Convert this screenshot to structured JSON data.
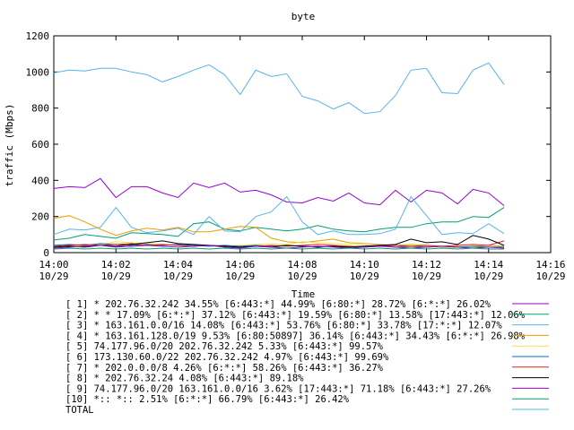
{
  "chart_data": {
    "type": "line",
    "title": "byte",
    "xlabel": "Time",
    "ylabel": "traffic (Mbps)",
    "ylim": [
      0,
      1200
    ],
    "yticks": [
      0,
      200,
      400,
      600,
      800,
      1000,
      1200
    ],
    "xlim": [
      "14:00",
      "14:16"
    ],
    "xticks": [
      {
        "time": "14:00",
        "date": "10/29"
      },
      {
        "time": "14:02",
        "date": "10/29"
      },
      {
        "time": "14:04",
        "date": "10/29"
      },
      {
        "time": "14:06",
        "date": "10/29"
      },
      {
        "time": "14:08",
        "date": "10/29"
      },
      {
        "time": "14:10",
        "date": "10/29"
      },
      {
        "time": "14:12",
        "date": "10/29"
      },
      {
        "time": "14:14",
        "date": "10/29"
      },
      {
        "time": "14:16",
        "date": "10/29"
      }
    ],
    "x": [
      "14:00:00",
      "14:00:30",
      "14:01:00",
      "14:01:30",
      "14:02:00",
      "14:02:30",
      "14:03:00",
      "14:03:30",
      "14:04:00",
      "14:04:30",
      "14:05:00",
      "14:05:30",
      "14:06:00",
      "14:06:30",
      "14:07:00",
      "14:07:30",
      "14:08:00",
      "14:08:30",
      "14:09:00",
      "14:09:30",
      "14:10:00",
      "14:10:30",
      "14:11:00",
      "14:11:30",
      "14:12:00",
      "14:12:30",
      "14:13:00",
      "14:13:30",
      "14:14:00",
      "14:14:30"
    ],
    "grid": false,
    "legend_position": "bottom",
    "series": [
      {
        "name": "[ 1] * 202.76.32.242 34.55%  [6:443:*] 44.99% [6:80:*] 28.72% [6:*:*] 26.02%",
        "color": "#9400d3",
        "values": [
          355,
          365,
          360,
          410,
          305,
          365,
          365,
          330,
          305,
          385,
          360,
          385,
          335,
          345,
          320,
          280,
          275,
          305,
          285,
          330,
          275,
          265,
          345,
          280,
          345,
          330,
          270,
          350,
          330,
          260
        ]
      },
      {
        "name": "[ 2] * * 17.09%  [6:*:*] 37.12% [6:443:*] 19.59% [6:80:*] 13.58% [17:443:*] 12.06%",
        "color": "#009e73",
        "values": [
          70,
          80,
          100,
          90,
          80,
          110,
          105,
          100,
          90,
          160,
          170,
          130,
          120,
          140,
          130,
          120,
          130,
          150,
          130,
          120,
          115,
          130,
          140,
          140,
          160,
          170,
          170,
          200,
          195,
          250
        ]
      },
      {
        "name": "[ 3] * 163.161.0.0/16 14.08%  [6:443:*] 53.76% [6:80:*] 33.78% [17:*:*] 12.07%",
        "color": "#56b4e9",
        "values": [
          100,
          130,
          125,
          140,
          250,
          140,
          110,
          120,
          135,
          100,
          200,
          120,
          115,
          200,
          225,
          310,
          170,
          100,
          120,
          100,
          100,
          105,
          130,
          310,
          205,
          100,
          110,
          105,
          160,
          105
        ]
      },
      {
        "name": "[ 4] * 163.161.128.0/19 9.53%  [6:80:50897] 36.14% [6:443:*] 34.43% [6:*:*] 26.98%",
        "color": "#e69f00",
        "values": [
          190,
          205,
          170,
          130,
          95,
          120,
          135,
          125,
          140,
          115,
          115,
          130,
          145,
          140,
          80,
          60,
          55,
          65,
          75,
          55,
          50,
          45,
          40,
          45,
          40,
          30,
          30,
          35,
          40,
          35
        ]
      },
      {
        "name": "[ 5] 74.177.96.0/20 202.76.32.242 5.33%  [6:443:*] 99.57%",
        "color": "#f0e442",
        "values": [
          30,
          35,
          40,
          45,
          60,
          55,
          50,
          45,
          40,
          45,
          40,
          35,
          40,
          45,
          50,
          45,
          60,
          55,
          50,
          45,
          40,
          35,
          40,
          30,
          35,
          30,
          35,
          30,
          30,
          25
        ]
      },
      {
        "name": "[ 6] 173.130.60.0/22 202.76.32.242 4.97%  [6:443:*] 99.69%",
        "color": "#0072b2",
        "values": [
          40,
          45,
          40,
          50,
          45,
          40,
          45,
          40,
          45,
          40,
          35,
          40,
          35,
          40,
          35,
          40,
          35,
          30,
          35,
          30,
          35,
          40,
          30,
          35,
          30,
          35,
          30,
          35,
          30,
          30
        ]
      },
      {
        "name": "[ 7] * 202.0.0.0/8 4.26%  [6:*:*] 58.26% [6:443:*] 36.27%",
        "color": "#e51e10",
        "values": [
          35,
          40,
          45,
          40,
          45,
          50,
          40,
          45,
          40,
          35,
          40,
          35,
          30,
          35,
          40,
          35,
          40,
          45,
          40,
          35,
          30,
          35,
          40,
          35,
          40,
          35,
          40,
          45,
          40,
          65
        ]
      },
      {
        "name": "[ 8] * 202.76.32.24 4.08%  [6:443:*] 89.18%",
        "color": "#000000",
        "values": [
          30,
          35,
          30,
          40,
          35,
          45,
          55,
          65,
          50,
          45,
          40,
          35,
          30,
          35,
          30,
          40,
          35,
          30,
          35,
          30,
          35,
          40,
          45,
          75,
          55,
          60,
          45,
          95,
          75,
          40
        ]
      },
      {
        "name": "[ 9] 74.177.96.0/20 163.161.0.0/16 3.62%  [17:443:*] 71.18% [6:443:*] 27.26%",
        "color": "#9400d3",
        "values": [
          25,
          30,
          35,
          40,
          30,
          35,
          40,
          35,
          30,
          35,
          40,
          30,
          25,
          35,
          30,
          25,
          30,
          35,
          30,
          25,
          30,
          35,
          30,
          25,
          30,
          35,
          30,
          25,
          30,
          25
        ]
      },
      {
        "name": "[10] *:: *:: 2.51%  [6:*:*] 66.79% [6:443:*] 26.42%",
        "color": "#009e73",
        "values": [
          20,
          25,
          20,
          25,
          20,
          25,
          20,
          25,
          20,
          25,
          20,
          25,
          20,
          25,
          20,
          25,
          20,
          25,
          20,
          25,
          20,
          25,
          20,
          25,
          20,
          25,
          20,
          25,
          20,
          20
        ]
      },
      {
        "name": "TOTAL",
        "color": "#56b4e9",
        "values": [
          995,
          1010,
          1005,
          1020,
          1020,
          1000,
          985,
          945,
          975,
          1010,
          1040,
          985,
          875,
          1010,
          975,
          990,
          865,
          840,
          795,
          830,
          770,
          780,
          870,
          1010,
          1020,
          885,
          880,
          1010,
          1050,
          930
        ]
      }
    ]
  }
}
